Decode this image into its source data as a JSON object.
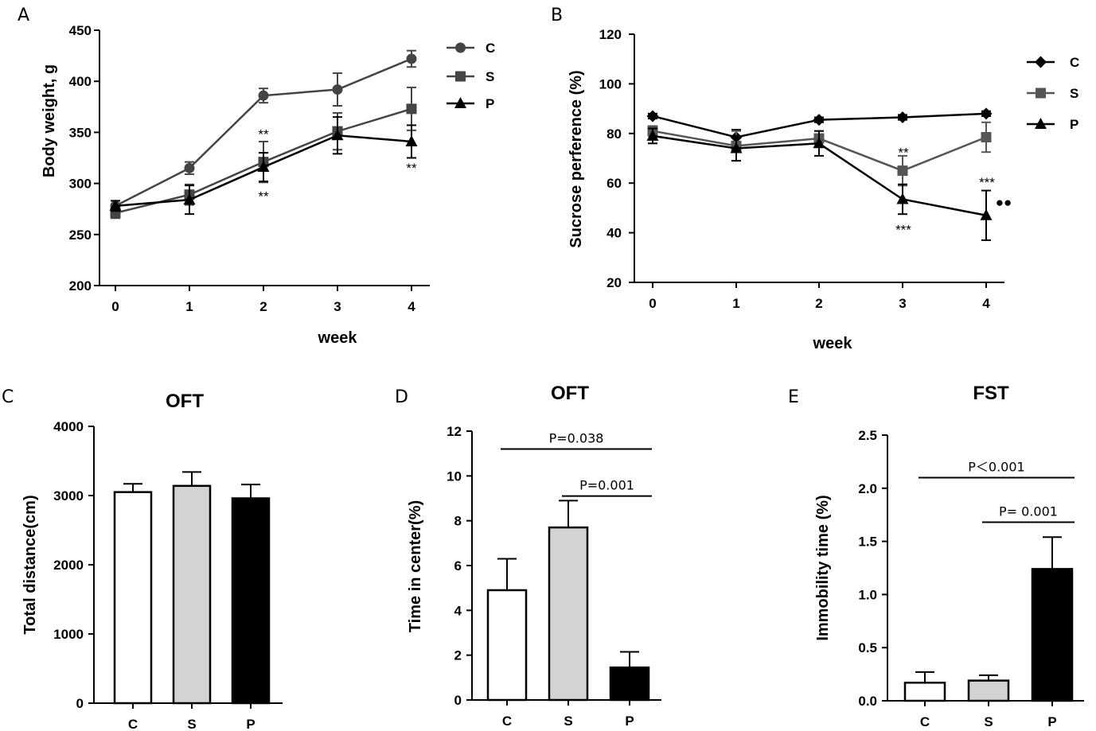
{
  "chart_data": [
    {
      "panel": "A",
      "type": "line",
      "xlabel": "week",
      "ylabel": "Body weight, g",
      "ylim": [
        200,
        450
      ],
      "yticks": [
        200,
        250,
        300,
        350,
        400,
        450
      ],
      "x": [
        0,
        1,
        2,
        3,
        4
      ],
      "series": [
        {
          "name": "C",
          "marker": "circle",
          "color": "#444444",
          "values": [
            278,
            315,
            386,
            392,
            422
          ],
          "errors": [
            5,
            6,
            7,
            16,
            8
          ]
        },
        {
          "name": "S",
          "marker": "square",
          "color": "#444444",
          "values": [
            271,
            289,
            321,
            351,
            373
          ],
          "errors": [
            5,
            10,
            20,
            18,
            21
          ]
        },
        {
          "name": "P",
          "marker": "triangle",
          "color": "#000000",
          "values": [
            278,
            284,
            316,
            347,
            341
          ],
          "errors": [
            5,
            14,
            14,
            18,
            16
          ]
        }
      ],
      "annotations": [
        {
          "text": "**",
          "x": 2,
          "y": 350
        },
        {
          "text": "**",
          "x": 2,
          "y": 289
        },
        {
          "text": "**",
          "x": 4,
          "y": 317
        }
      ]
    },
    {
      "panel": "B",
      "type": "line",
      "xlabel": "week",
      "ylabel": "Sucrose perference (%)",
      "ylim": [
        20,
        120
      ],
      "yticks": [
        20,
        40,
        60,
        80,
        100,
        120
      ],
      "x": [
        0,
        1,
        2,
        3,
        4
      ],
      "series": [
        {
          "name": "C",
          "marker": "diamond",
          "color": "#000000",
          "values": [
            87,
            78.5,
            85.5,
            86.5,
            88
          ],
          "errors": [
            1,
            3,
            1,
            1,
            1
          ]
        },
        {
          "name": "S",
          "marker": "square",
          "color": "#555555",
          "values": [
            81,
            75,
            78,
            65,
            78.5
          ],
          "errors": [
            2,
            6,
            3,
            6,
            6
          ]
        },
        {
          "name": "P",
          "marker": "triangle",
          "color": "#000000",
          "values": [
            79,
            74,
            76,
            53.5,
            47
          ],
          "errors": [
            3,
            5,
            5,
            6,
            10
          ]
        }
      ],
      "annotations": [
        {
          "text": "**",
          "x": 3,
          "y": 73
        },
        {
          "text": "***",
          "x": 3,
          "y": 42
        },
        {
          "text": "***",
          "x": 4,
          "y": 61
        },
        {
          "text": "●●",
          "x": 4.2,
          "y": 53
        }
      ]
    },
    {
      "panel": "C",
      "type": "bar",
      "title": "OFT",
      "ylabel": "Total distance(cm)",
      "ylim": [
        0,
        4000
      ],
      "yticks": [
        0,
        1000,
        2000,
        3000,
        4000
      ],
      "categories": [
        "C",
        "S",
        "P"
      ],
      "values": [
        3050,
        3140,
        2960
      ],
      "errors": [
        120,
        200,
        200
      ],
      "colors": [
        "#ffffff",
        "#d3d3d3",
        "#000000"
      ],
      "comparisons": []
    },
    {
      "panel": "D",
      "type": "bar",
      "title": "OFT",
      "ylabel": "Time in center(%)",
      "ylim": [
        0,
        12
      ],
      "yticks": [
        0,
        2,
        4,
        6,
        8,
        10,
        12
      ],
      "categories": [
        "C",
        "S",
        "P"
      ],
      "values": [
        4.9,
        7.7,
        1.45
      ],
      "errors": [
        1.4,
        1.2,
        0.7
      ],
      "colors": [
        "#ffffff",
        "#d3d3d3",
        "#000000"
      ],
      "comparisons": [
        {
          "label": "P=0.038",
          "from": 0,
          "to": 2,
          "y": 11.2
        },
        {
          "label": "P=0.001",
          "from": 1,
          "to": 2,
          "y": 9.1
        }
      ]
    },
    {
      "panel": "E",
      "type": "bar",
      "title": "FST",
      "ylabel": "Immobility time (%)",
      "ylim": [
        0,
        2.5
      ],
      "yticks": [
        "0.0",
        "0.5",
        "1.0",
        "1.5",
        "2.0",
        "2.5"
      ],
      "categories": [
        "C",
        "S",
        "P"
      ],
      "values": [
        0.17,
        0.19,
        1.24
      ],
      "errors": [
        0.1,
        0.05,
        0.3
      ],
      "colors": [
        "#ffffff",
        "#d3d3d3",
        "#000000"
      ],
      "comparisons": [
        {
          "label": "P＜0.001",
          "from": 0,
          "to": 2,
          "y": 2.1
        },
        {
          "label": "P= 0.001",
          "from": 1,
          "to": 2,
          "y": 1.68
        }
      ]
    }
  ]
}
